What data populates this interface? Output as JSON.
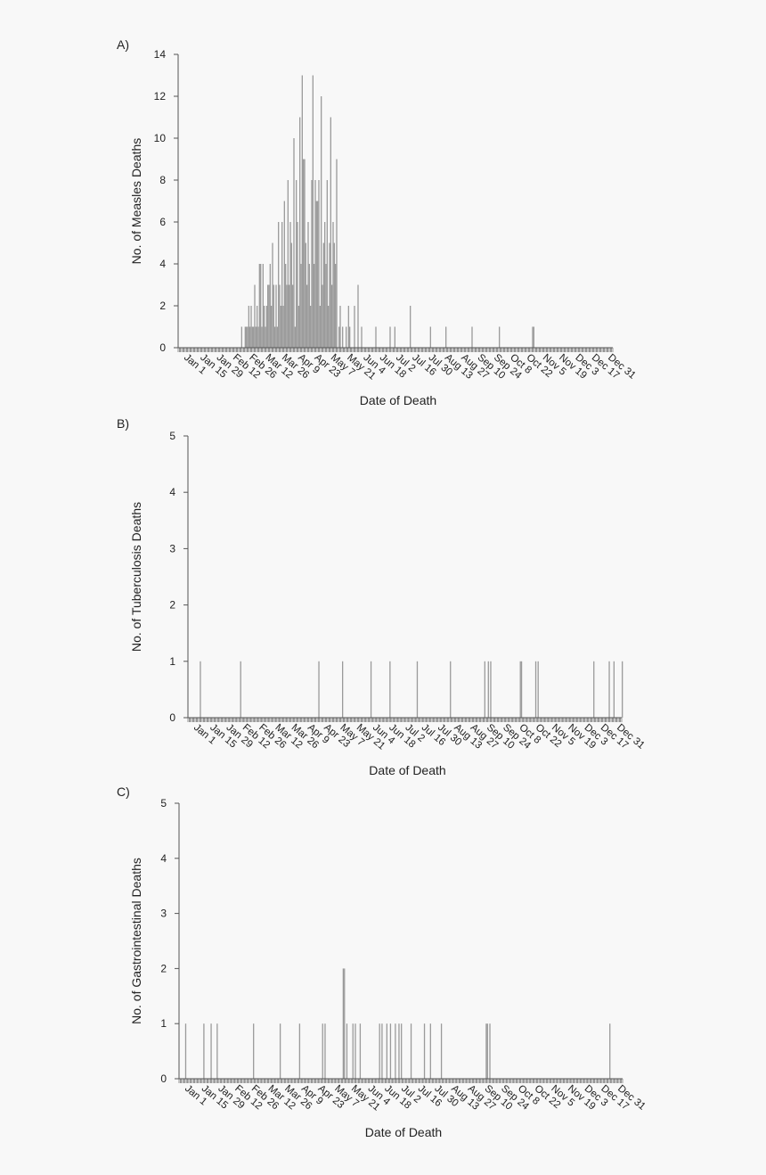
{
  "chart_data": [
    {
      "type": "bar",
      "panel_label": "A)",
      "ylabel": "No. of Measles Deaths",
      "xlabel": "Date of Death",
      "ylim": [
        0,
        14
      ],
      "yticks": [
        0,
        2,
        4,
        6,
        8,
        10,
        12,
        14
      ],
      "tick_labels": [
        "Jan 1",
        "Jan 15",
        "Jan 29",
        "Feb 12",
        "Feb 26",
        "Mar 12",
        "Mar 26",
        "Apr 9",
        "Apr 23",
        "May 7",
        "May 21",
        "Jun 4",
        "Jun 18",
        "Jul 2",
        "Jul 16",
        "Jul 30",
        "Aug 13",
        "Aug 27",
        "Sep 10",
        "Sep 24",
        "Oct 8",
        "Oct 22",
        "Nov 5",
        "Nov 19",
        "Dec 3",
        "Dec 17",
        "Dec 31"
      ],
      "x_unit": "day of year (1 = Jan 1)",
      "x": [
        54,
        57,
        58,
        59,
        60,
        61,
        62,
        63,
        64,
        65,
        66,
        67,
        68,
        69,
        70,
        71,
        72,
        73,
        74,
        75,
        76,
        77,
        78,
        79,
        80,
        81,
        82,
        83,
        84,
        85,
        86,
        87,
        88,
        89,
        90,
        91,
        92,
        93,
        94,
        95,
        96,
        97,
        98,
        99,
        100,
        101,
        102,
        103,
        104,
        105,
        106,
        107,
        108,
        109,
        110,
        111,
        112,
        113,
        114,
        115,
        116,
        117,
        118,
        119,
        120,
        121,
        122,
        123,
        124,
        125,
        126,
        127,
        128,
        129,
        130,
        131,
        132,
        133,
        134,
        136,
        137,
        139,
        142,
        144,
        145,
        149,
        152,
        155,
        167,
        179,
        183,
        196,
        213,
        226,
        248,
        271,
        299,
        300
      ],
      "values": [
        1,
        1,
        1,
        1,
        2,
        1,
        2,
        1,
        1,
        3,
        1,
        2,
        1,
        4,
        4,
        1,
        4,
        2,
        1,
        2,
        3,
        3,
        4,
        2,
        5,
        3,
        1,
        3,
        1,
        6,
        3,
        2,
        6,
        2,
        7,
        4,
        3,
        8,
        3,
        6,
        5,
        3,
        10,
        1,
        8,
        6,
        2,
        11,
        4,
        13,
        9,
        9,
        5,
        3,
        6,
        4,
        2,
        8,
        13,
        4,
        8,
        7,
        7,
        8,
        2,
        12,
        3,
        5,
        6,
        4,
        8,
        2,
        5,
        11,
        3,
        6,
        5,
        4,
        9,
        1,
        2,
        1,
        1,
        2,
        1,
        2,
        3,
        1,
        1,
        1,
        1,
        2,
        1,
        1,
        1,
        1,
        1,
        1
      ]
    },
    {
      "type": "bar",
      "panel_label": "B)",
      "ylabel": "No. of Tuberculosis Deaths",
      "xlabel": "Date of Death",
      "ylim": [
        0,
        5
      ],
      "yticks": [
        0,
        1,
        2,
        3,
        4,
        5
      ],
      "tick_labels": [
        "Jan 1",
        "Jan 15",
        "Jan 29",
        "Feb 12",
        "Feb 26",
        "Mar 12",
        "Mar 26",
        "Apr 9",
        "Apr 23",
        "May 7",
        "May 21",
        "Jun 4",
        "Jun 18",
        "Jul 2",
        "Jul 16",
        "Jul 30",
        "Aug 13",
        "Aug 27",
        "Sep 10",
        "Sep 24",
        "Oct 8",
        "Oct 22",
        "Nov 5",
        "Nov 19",
        "Dec 3",
        "Dec 17",
        "Dec 31"
      ],
      "x_unit": "day of year (1 = Jan 1)",
      "x": [
        11,
        45,
        111,
        131,
        155,
        171,
        194,
        222,
        251,
        254,
        256,
        281,
        282,
        294,
        296,
        343,
        356,
        360,
        367
      ],
      "values": [
        1,
        1,
        1,
        1,
        1,
        1,
        1,
        1,
        1,
        1,
        1,
        1,
        1,
        1,
        1,
        1,
        1,
        1,
        1
      ]
    },
    {
      "type": "bar",
      "panel_label": "C)",
      "ylabel": "No. of Gastrointestinal Deaths",
      "xlabel": "Date of Death",
      "ylim": [
        0,
        5
      ],
      "yticks": [
        0,
        1,
        2,
        3,
        4,
        5
      ],
      "tick_labels": [
        "Jan 1",
        "Jan 15",
        "Jan 29",
        "Feb 12",
        "Feb 26",
        "Mar 12",
        "Mar 26",
        "Apr 9",
        "Apr 23",
        "May 7",
        "May 21",
        "Jun 4",
        "Jun 18",
        "Jul 2",
        "Jul 16",
        "Jul 30",
        "Aug 13",
        "Aug 27",
        "Sep 10",
        "Sep 24",
        "Oct 8",
        "Oct 22",
        "Nov 5",
        "Nov 19",
        "Dec 3",
        "Dec 17",
        "Dec 31"
      ],
      "x_unit": "day of year (1 = Jan 1)",
      "x": [
        6,
        21,
        27,
        32,
        62,
        84,
        100,
        119,
        121,
        136,
        137,
        139,
        144,
        146,
        150,
        166,
        168,
        172,
        175,
        179,
        182,
        184,
        192,
        203,
        208,
        217,
        254,
        255,
        257,
        356
      ],
      "values": [
        1,
        1,
        1,
        1,
        1,
        1,
        1,
        1,
        1,
        2,
        2,
        1,
        1,
        1,
        1,
        1,
        1,
        1,
        1,
        1,
        1,
        1,
        1,
        1,
        1,
        1,
        1,
        1,
        1,
        1
      ]
    }
  ],
  "colors": {
    "bar": "#9a9a9a",
    "axis": "#555555",
    "text": "#222222",
    "background": "#f8f8f8"
  }
}
